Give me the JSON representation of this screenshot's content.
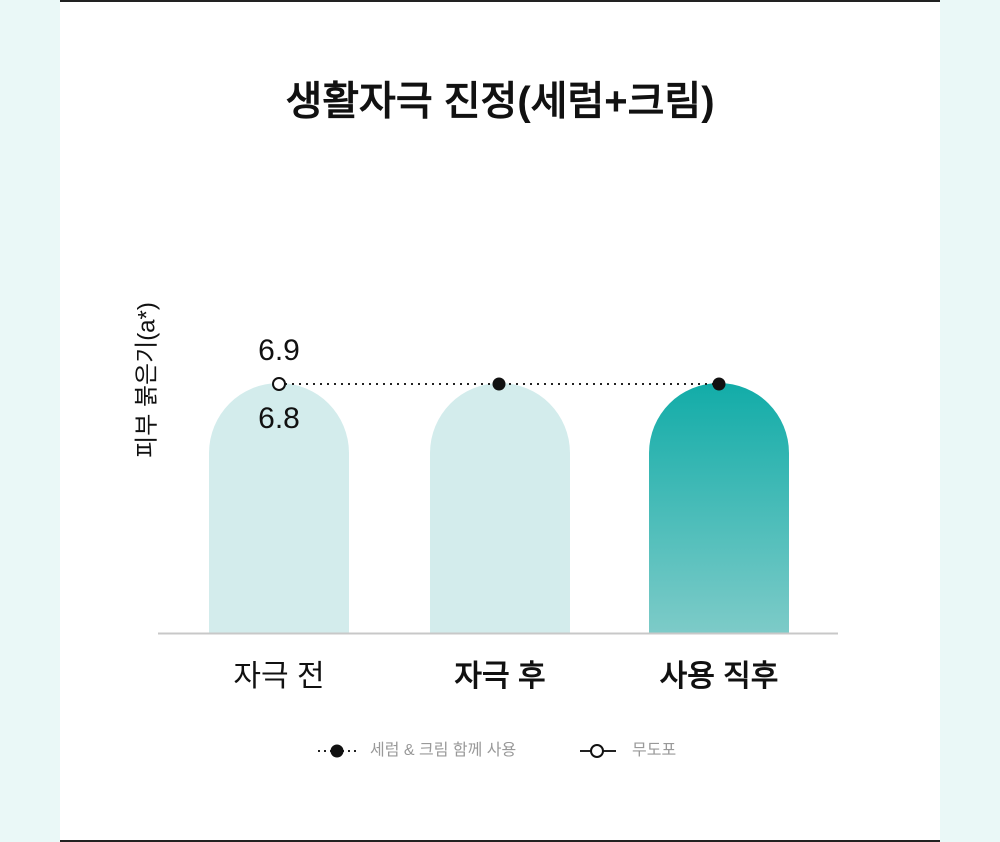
{
  "title": "생활자극 진정(세럼+크림)",
  "y_axis_label": "피부 붉은기(a*)",
  "categories": [
    "자극 전",
    "자극 후",
    "사용 직후"
  ],
  "annotations": [
    "6.9",
    "6.8"
  ],
  "legend": [
    "세럼 & 크림 함께 사용",
    "무도포"
  ]
}
